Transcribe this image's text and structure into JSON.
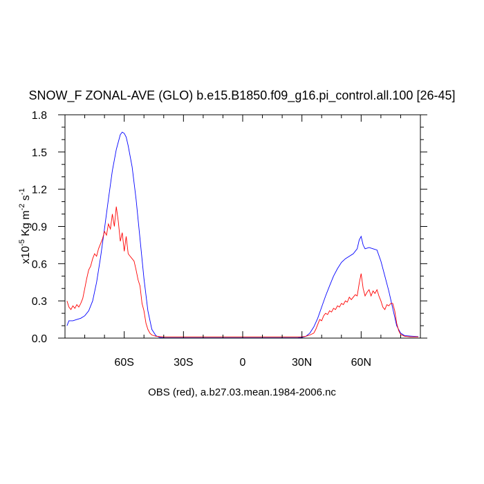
{
  "chart_data": {
    "type": "line",
    "title": "SNOW_F ZONAL-AVE (GLO) b.e15.B1850.f09_g16.pi_control.all.100 [26-45]",
    "footnote": "OBS (red), a.b27.03.mean.1984-2006.nc",
    "ylabel_prefix": "x10",
    "ylabel_exp": "-5",
    "ylabel_unit_1": " Kg m",
    "ylabel_exp_2": "-2",
    "ylabel_unit_2": " s",
    "ylabel_exp_3": "-1",
    "xlim": [
      -90,
      90
    ],
    "ylim": [
      0,
      1.8
    ],
    "xticks": [
      {
        "value": -60,
        "label": "60S"
      },
      {
        "value": -30,
        "label": "30S"
      },
      {
        "value": 0,
        "label": "0"
      },
      {
        "value": 30,
        "label": "30N"
      },
      {
        "value": 60,
        "label": "60N"
      }
    ],
    "xminor": [
      -80,
      -70,
      -50,
      -40,
      -20,
      -10,
      10,
      20,
      40,
      50,
      70,
      80
    ],
    "yticks": [
      {
        "value": 0.0,
        "label": "0.0"
      },
      {
        "value": 0.3,
        "label": "0.3"
      },
      {
        "value": 0.6,
        "label": "0.6"
      },
      {
        "value": 0.9,
        "label": "0.9"
      },
      {
        "value": 1.2,
        "label": "1.2"
      },
      {
        "value": 1.5,
        "label": "1.5"
      },
      {
        "value": 1.8,
        "label": "1.8"
      }
    ],
    "yminor": [
      0.1,
      0.2,
      0.4,
      0.5,
      0.7,
      0.8,
      1.0,
      1.1,
      1.3,
      1.4,
      1.6,
      1.7
    ],
    "series": [
      {
        "color": "#0000ff",
        "points": [
          [
            -89,
            0.1
          ],
          [
            -88,
            0.14
          ],
          [
            -86,
            0.14
          ],
          [
            -84,
            0.15
          ],
          [
            -82,
            0.16
          ],
          [
            -80,
            0.18
          ],
          [
            -78,
            0.22
          ],
          [
            -76,
            0.3
          ],
          [
            -74,
            0.45
          ],
          [
            -72,
            0.65
          ],
          [
            -70,
            0.88
          ],
          [
            -68,
            1.12
          ],
          [
            -66,
            1.35
          ],
          [
            -64,
            1.52
          ],
          [
            -62,
            1.64
          ],
          [
            -61,
            1.66
          ],
          [
            -60,
            1.65
          ],
          [
            -59,
            1.62
          ],
          [
            -58,
            1.55
          ],
          [
            -56,
            1.38
          ],
          [
            -54,
            1.12
          ],
          [
            -52,
            0.8
          ],
          [
            -50,
            0.48
          ],
          [
            -48,
            0.22
          ],
          [
            -46,
            0.07
          ],
          [
            -44,
            0.02
          ],
          [
            -42,
            0.005
          ],
          [
            -40,
            0.003
          ],
          [
            -30,
            0.002
          ],
          [
            -20,
            0.002
          ],
          [
            -10,
            0.002
          ],
          [
            0,
            0.002
          ],
          [
            10,
            0.002
          ],
          [
            20,
            0.002
          ],
          [
            28,
            0.003
          ],
          [
            30,
            0.005
          ],
          [
            32,
            0.015
          ],
          [
            34,
            0.04
          ],
          [
            36,
            0.09
          ],
          [
            38,
            0.16
          ],
          [
            40,
            0.25
          ],
          [
            42,
            0.34
          ],
          [
            44,
            0.42
          ],
          [
            46,
            0.5
          ],
          [
            48,
            0.56
          ],
          [
            50,
            0.61
          ],
          [
            52,
            0.64
          ],
          [
            54,
            0.66
          ],
          [
            56,
            0.68
          ],
          [
            58,
            0.72
          ],
          [
            59,
            0.79
          ],
          [
            60,
            0.82
          ],
          [
            61,
            0.75
          ],
          [
            62,
            0.72
          ],
          [
            64,
            0.73
          ],
          [
            66,
            0.72
          ],
          [
            68,
            0.71
          ],
          [
            70,
            0.62
          ],
          [
            72,
            0.5
          ],
          [
            74,
            0.38
          ],
          [
            76,
            0.24
          ],
          [
            78,
            0.1
          ],
          [
            80,
            0.04
          ],
          [
            82,
            0.02
          ],
          [
            86,
            0.015
          ],
          [
            89,
            0.012
          ]
        ]
      },
      {
        "color": "#ff0000",
        "points": [
          [
            -89,
            0.3
          ],
          [
            -88,
            0.25
          ],
          [
            -87,
            0.23
          ],
          [
            -86,
            0.26
          ],
          [
            -85,
            0.24
          ],
          [
            -84,
            0.27
          ],
          [
            -83,
            0.25
          ],
          [
            -82,
            0.28
          ],
          [
            -81,
            0.32
          ],
          [
            -80,
            0.4
          ],
          [
            -79,
            0.48
          ],
          [
            -78,
            0.55
          ],
          [
            -77,
            0.58
          ],
          [
            -76,
            0.64
          ],
          [
            -75,
            0.68
          ],
          [
            -74,
            0.66
          ],
          [
            -73,
            0.72
          ],
          [
            -72,
            0.76
          ],
          [
            -71,
            0.8
          ],
          [
            -70,
            0.86
          ],
          [
            -69,
            0.83
          ],
          [
            -68,
            0.92
          ],
          [
            -67,
            0.88
          ],
          [
            -66,
            1.0
          ],
          [
            -65,
            0.9
          ],
          [
            -64,
            1.06
          ],
          [
            -63,
            0.94
          ],
          [
            -62,
            0.78
          ],
          [
            -61,
            0.85
          ],
          [
            -60,
            0.7
          ],
          [
            -59,
            0.82
          ],
          [
            -58,
            0.68
          ],
          [
            -57,
            0.66
          ],
          [
            -56,
            0.64
          ],
          [
            -55,
            0.62
          ],
          [
            -54,
            0.55
          ],
          [
            -53,
            0.47
          ],
          [
            -52,
            0.42
          ],
          [
            -51,
            0.28
          ],
          [
            -50,
            0.22
          ],
          [
            -49,
            0.12
          ],
          [
            -48,
            0.07
          ],
          [
            -47,
            0.04
          ],
          [
            -46,
            0.025
          ],
          [
            -44,
            0.015
          ],
          [
            -42,
            0.012
          ],
          [
            -40,
            0.01
          ],
          [
            -30,
            0.01
          ],
          [
            -20,
            0.01
          ],
          [
            -10,
            0.01
          ],
          [
            0,
            0.01
          ],
          [
            10,
            0.01
          ],
          [
            20,
            0.01
          ],
          [
            30,
            0.01
          ],
          [
            32,
            0.015
          ],
          [
            34,
            0.025
          ],
          [
            36,
            0.04
          ],
          [
            37,
            0.07
          ],
          [
            38,
            0.11
          ],
          [
            39,
            0.15
          ],
          [
            40,
            0.14
          ],
          [
            41,
            0.18
          ],
          [
            42,
            0.2
          ],
          [
            43,
            0.19
          ],
          [
            44,
            0.22
          ],
          [
            45,
            0.21
          ],
          [
            46,
            0.24
          ],
          [
            47,
            0.23
          ],
          [
            48,
            0.26
          ],
          [
            49,
            0.25
          ],
          [
            50,
            0.28
          ],
          [
            51,
            0.27
          ],
          [
            52,
            0.3
          ],
          [
            53,
            0.29
          ],
          [
            54,
            0.33
          ],
          [
            55,
            0.31
          ],
          [
            56,
            0.33
          ],
          [
            57,
            0.35
          ],
          [
            58,
            0.34
          ],
          [
            59,
            0.44
          ],
          [
            60,
            0.52
          ],
          [
            61,
            0.4
          ],
          [
            62,
            0.34
          ],
          [
            63,
            0.37
          ],
          [
            64,
            0.39
          ],
          [
            65,
            0.34
          ],
          [
            66,
            0.38
          ],
          [
            67,
            0.36
          ],
          [
            68,
            0.39
          ],
          [
            69,
            0.34
          ],
          [
            70,
            0.3
          ],
          [
            71,
            0.25
          ],
          [
            72,
            0.23
          ],
          [
            73,
            0.27
          ],
          [
            74,
            0.26
          ],
          [
            75,
            0.28
          ],
          [
            76,
            0.28
          ],
          [
            77,
            0.22
          ],
          [
            78,
            0.12
          ],
          [
            79,
            0.06
          ],
          [
            80,
            0.03
          ],
          [
            82,
            0.015
          ],
          [
            85,
            0.01
          ],
          [
            89,
            0.01
          ]
        ]
      }
    ]
  }
}
